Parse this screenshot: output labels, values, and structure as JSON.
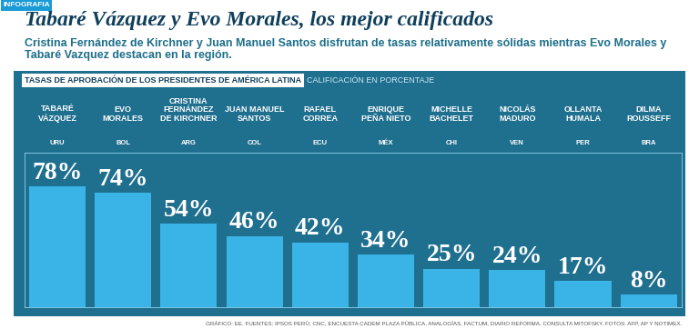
{
  "header": {
    "tag": "INFOGRAFIA",
    "title": "Tabaré Vázquez y Evo Morales, los mejor calificados",
    "subtitle": "Cristina Fernández de Kirchner y Juan Manuel Santos disfrutan de tasas relativamente sólidas mientras Evo Morales y Tabaré Vazquez destacan en la región."
  },
  "chart_data": {
    "type": "bar",
    "title": "TASAS DE APROBACIÓN DE LOS PRESIDENTES DE AMÉRICA LATINA",
    "subtitle": "CALIFICACIÓN EN PORCENTAJE",
    "categories": [
      "TABARÉ\nVÁZQUEZ",
      "EVO\nMORALES",
      "CRISTINA\nFERNÁNDEZ\nDE KIRCHNER",
      "JUAN MANUEL\nSANTOS",
      "RAFAEL\nCORREA",
      "ENRIQUE\nPEÑA NIETO",
      "MICHELLE\nBACHELET",
      "NICOLÁS\nMADURO",
      "OLLANTA\nHUMALA",
      "DILMA\nROUSSEFF"
    ],
    "countries": [
      "URU",
      "BOL",
      "ARG",
      "COL",
      "ECU",
      "MÉX",
      "CHI",
      "VEN",
      "PER",
      "BRA"
    ],
    "values": [
      78,
      74,
      54,
      46,
      42,
      34,
      25,
      24,
      17,
      8
    ],
    "value_labels": [
      "78%",
      "74%",
      "54%",
      "46%",
      "42%",
      "34%",
      "25%",
      "24%",
      "17%",
      "8%"
    ],
    "data_labels": true,
    "color": "#3ab4e6",
    "ylim": [
      0,
      100
    ],
    "grid": false
  },
  "footer": "GRÁFICO: EE. FUENTES: IPSOS PERÚ, CNC, ENCUESTA CADEM PLAZA PÚBLICA, ANALOGÍAS, FACTUM, DIARIO REFORMA, CONSULTA MITOFSKY. FOTOS: AFP, AP Y NOTIMEX."
}
